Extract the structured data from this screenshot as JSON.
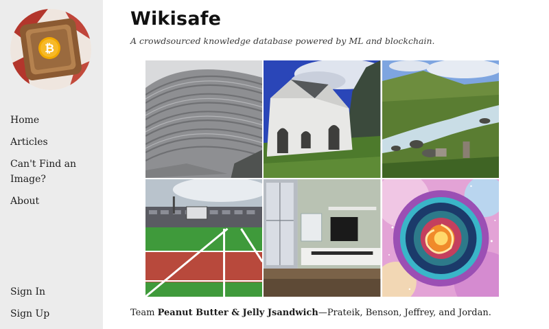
{
  "site": {
    "title": "Wikisafe",
    "tagline": "A crowdsourced knowledge database powered by ML and blockchain."
  },
  "nav": {
    "home": "Home",
    "articles": "Articles",
    "cant_find": "Can't Find an Image?",
    "about": "About",
    "sign_in": "Sign In",
    "sign_up": "Sign Up"
  },
  "gallery": [
    {
      "name": "stone-amphitheater-image"
    },
    {
      "name": "white-chapel-image"
    },
    {
      "name": "mountain-stream-image"
    },
    {
      "name": "stadium-track-image"
    },
    {
      "name": "living-room-image"
    },
    {
      "name": "cosmic-galaxy-image"
    }
  ],
  "footer": {
    "prefix": "Team ",
    "team_name": "Peanut Butter & Jelly Jsandwich",
    "members": "—Prateik, Benson, Jeffrey, and Jordan."
  },
  "colors": {
    "sidebar_bg": "#ececec",
    "logo_bg": "#c4302b",
    "bitcoin": "#f2a900"
  }
}
